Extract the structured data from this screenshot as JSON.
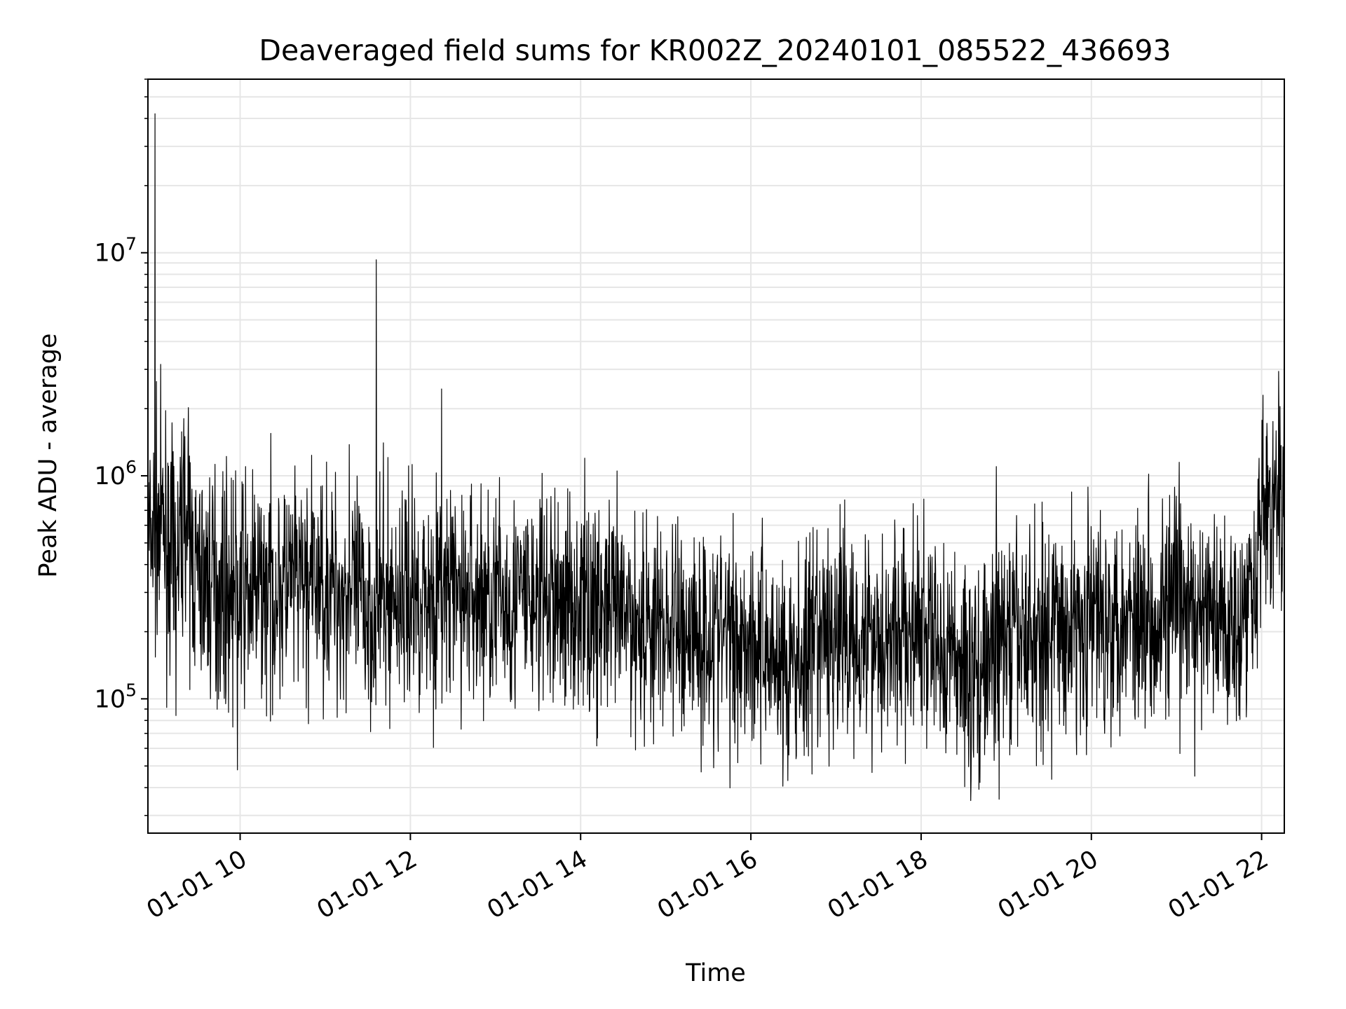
{
  "chart_data": {
    "type": "line",
    "title": "Deaveraged field sums for KR002Z_20240101_085522_436693",
    "xlabel": "Time",
    "ylabel": "Peak ADU - average",
    "x_ticks": [
      "01-01 10",
      "01-01 12",
      "01-01 14",
      "01-01 16",
      "01-01 18",
      "01-01 20",
      "01-01 22"
    ],
    "y_ticks": [
      {
        "base": "10",
        "exp": "5",
        "value": 100000
      },
      {
        "base": "10",
        "exp": "6",
        "value": 1000000
      },
      {
        "base": "10",
        "exp": "7",
        "value": 10000000
      }
    ],
    "x_range": [
      "2024-01-01 08:55",
      "2024-01-01 22:16"
    ],
    "yscale": "log",
    "ylim": [
      25000,
      60000000
    ],
    "grid": true,
    "line_color": "#000000",
    "grid_color": "#e6e6e6",
    "baseline": [
      {
        "x": "2024-01-01 08:55",
        "y": 500000
      },
      {
        "x": "2024-01-01 09:05",
        "y": 600000
      },
      {
        "x": "2024-01-01 09:15",
        "y": 350000
      },
      {
        "x": "2024-01-01 09:20",
        "y": 650000
      },
      {
        "x": "2024-01-01 09:30",
        "y": 350000
      },
      {
        "x": "2024-01-01 10:00",
        "y": 300000
      },
      {
        "x": "2024-01-01 11:00",
        "y": 330000
      },
      {
        "x": "2024-01-01 11:30",
        "y": 260000
      },
      {
        "x": "2024-01-01 12:00",
        "y": 300000
      },
      {
        "x": "2024-01-01 13:00",
        "y": 280000
      },
      {
        "x": "2024-01-01 14:00",
        "y": 270000
      },
      {
        "x": "2024-01-01 14:30",
        "y": 230000
      },
      {
        "x": "2024-01-01 15:00",
        "y": 210000
      },
      {
        "x": "2024-01-01 16:00",
        "y": 190000
      },
      {
        "x": "2024-01-01 16:30",
        "y": 140000
      },
      {
        "x": "2024-01-01 17:00",
        "y": 200000
      },
      {
        "x": "2024-01-01 18:00",
        "y": 190000
      },
      {
        "x": "2024-01-01 18:40",
        "y": 130000
      },
      {
        "x": "2024-01-01 19:00",
        "y": 180000
      },
      {
        "x": "2024-01-01 20:00",
        "y": 230000
      },
      {
        "x": "2024-01-01 21:00",
        "y": 260000
      },
      {
        "x": "2024-01-01 21:30",
        "y": 220000
      },
      {
        "x": "2024-01-01 21:50",
        "y": 250000
      },
      {
        "x": "2024-01-01 22:00",
        "y": 700000
      },
      {
        "x": "2024-01-01 22:16",
        "y": 750000
      }
    ],
    "spikes": [
      {
        "x": "2024-01-01 09:00",
        "y": 42000000
      },
      {
        "x": "2024-01-01 11:36",
        "y": 9300000
      },
      {
        "x": "2024-01-01 12:22",
        "y": 2450000
      },
      {
        "x": "2024-01-01 11:17",
        "y": 1380000
      },
      {
        "x": "2024-01-01 09:21",
        "y": 1500000
      },
      {
        "x": "2024-01-01 22:16",
        "y": 2600000
      },
      {
        "x": "2024-01-01 18:53",
        "y": 1100000
      },
      {
        "x": "2024-01-01 21:02",
        "y": 1150000
      },
      {
        "x": "2024-01-01 18:35",
        "y": 35000
      },
      {
        "x": "2024-01-01 16:26",
        "y": 43000
      },
      {
        "x": "2024-01-01 09:58",
        "y": 48000
      },
      {
        "x": "2024-01-01 15:25",
        "y": 47000
      },
      {
        "x": "2024-01-01 16:43",
        "y": 46000
      },
      {
        "x": "2024-01-01 21:13",
        "y": 45000
      }
    ],
    "spread_factor": 2.5
  }
}
